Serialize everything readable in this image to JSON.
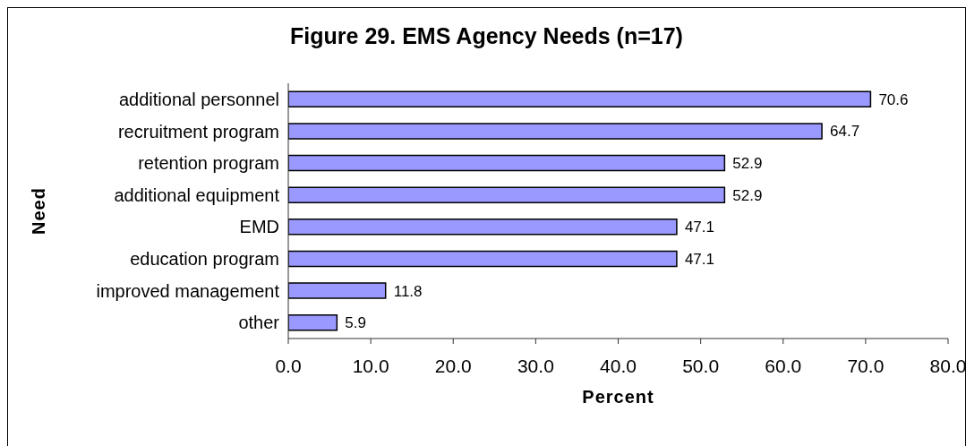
{
  "chart_data": {
    "type": "bar",
    "orientation": "horizontal",
    "title": "Figure 29. EMS Agency Needs (n=17)",
    "xlabel": "Percent",
    "ylabel": "Need",
    "categories": [
      "additional personnel",
      "recruitment program",
      "retention program",
      "additional equipment",
      "EMD",
      "education program",
      "improved management",
      "other"
    ],
    "values": [
      70.6,
      64.7,
      52.9,
      52.9,
      47.1,
      47.1,
      11.8,
      5.9
    ],
    "color": "#9999ff",
    "xlim": [
      0,
      80
    ],
    "xticks": [
      {
        "value": 0,
        "label": "0.0"
      },
      {
        "value": 10,
        "label": "10.0"
      },
      {
        "value": 20,
        "label": "20.0"
      },
      {
        "value": 30,
        "label": "30.0"
      },
      {
        "value": 40,
        "label": "40.0"
      },
      {
        "value": 50,
        "label": "50.0"
      },
      {
        "value": 60,
        "label": "60.0"
      },
      {
        "value": 70,
        "label": "70.0"
      },
      {
        "value": 80,
        "label": "80.0"
      }
    ],
    "data_labels": true
  }
}
